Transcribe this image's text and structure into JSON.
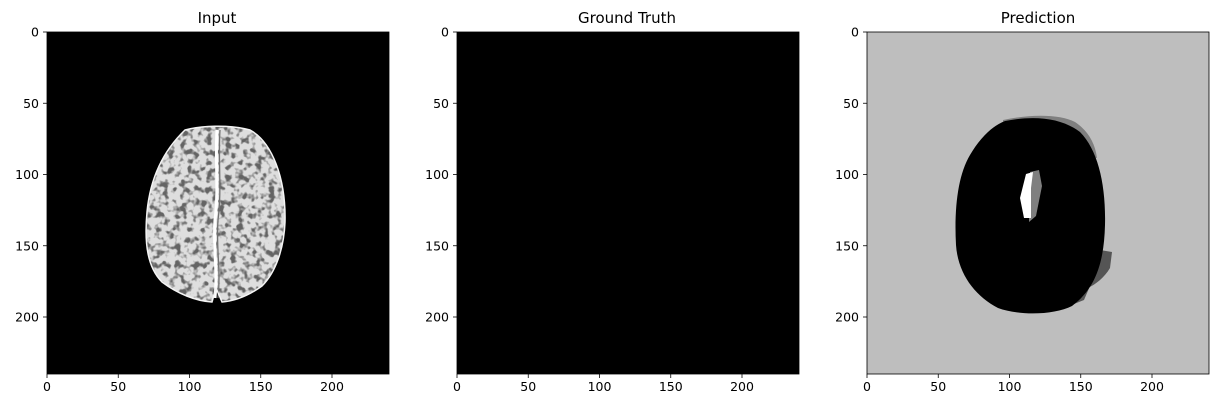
{
  "chart_data": [
    {
      "type": "heatmap",
      "title": "Input",
      "colormap": "gray",
      "xlim": [
        0,
        240
      ],
      "ylim": [
        240,
        0
      ],
      "xticks": [
        0,
        50,
        100,
        150,
        200
      ],
      "yticks": [
        0,
        50,
        100,
        150,
        200
      ],
      "content": "axial brain MRI slice, bright tissue on black background",
      "region": {
        "x": [
          70,
          165
        ],
        "y": [
          68,
          192
        ]
      }
    },
    {
      "type": "heatmap",
      "title": "Ground Truth",
      "colormap": "gray",
      "xlim": [
        0,
        240
      ],
      "ylim": [
        240,
        0
      ],
      "xticks": [
        0,
        50,
        100,
        150,
        200
      ],
      "yticks": [
        0,
        50,
        100,
        150,
        200
      ],
      "content": "all zeros (entirely black)"
    },
    {
      "type": "heatmap",
      "title": "Prediction",
      "colormap": "gray",
      "xlim": [
        0,
        240
      ],
      "ylim": [
        240,
        0
      ],
      "xticks": [
        0,
        50,
        100,
        150,
        200
      ],
      "yticks": [
        0,
        50,
        100,
        150,
        200
      ],
      "content": "light gray background with black ellipse, small white and gray segments",
      "region": {
        "x": [
          62,
          167
        ],
        "y": [
          78,
          199
        ]
      }
    }
  ],
  "colors": {
    "background": "#ffffff",
    "black": "#000000",
    "light_gray": "#bebebe",
    "mid_gray": "#7f7f7f",
    "dark_gray": "#555555",
    "white": "#ffffff"
  }
}
